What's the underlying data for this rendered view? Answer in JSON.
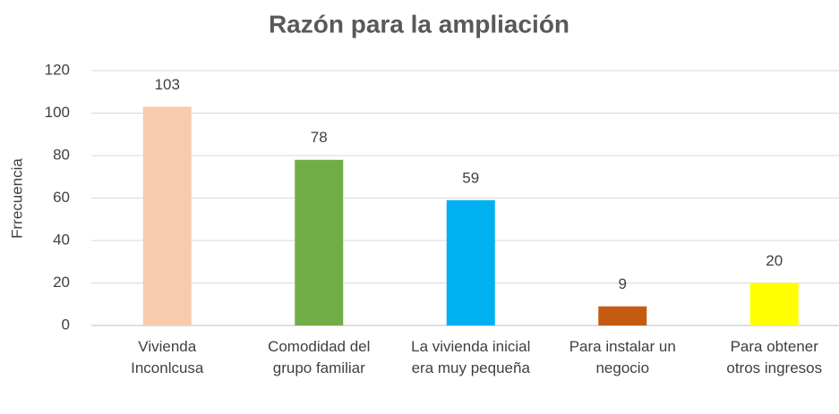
{
  "chart_data": {
    "type": "bar",
    "title": "Razón para la ampliación",
    "y_label": "Frrecuencia",
    "categories": [
      "Vivienda Inconlcusa",
      "Comodidad del grupo familiar",
      "La vivienda inicial era muy pequeña",
      "Para instalar un negocio",
      "Para obtener otros ingresos"
    ],
    "values": [
      103,
      78,
      59,
      9,
      20
    ],
    "colors": [
      "#f8cbad",
      "#70ad47",
      "#00b0f0",
      "#c55a11",
      "#ffff00"
    ],
    "ylim": [
      0,
      120
    ],
    "yticks": [
      0,
      20,
      40,
      60,
      80,
      100,
      120
    ],
    "grid": true
  }
}
